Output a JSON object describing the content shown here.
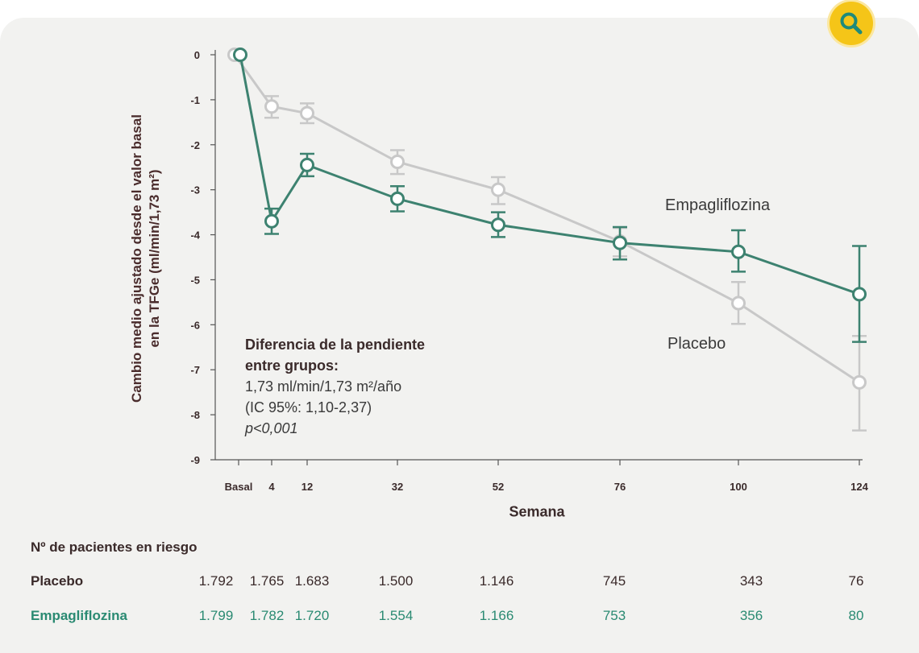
{
  "colors": {
    "empagliflozina": "#3d8270",
    "placebo": "#c8c8c8",
    "axis": "#555555",
    "card_background": "#f2f2f0",
    "zoom_button": "#f5c518",
    "risk_empagliflozina_text": "#2a8a72"
  },
  "toolbar": {
    "zoom_icon": "magnifier-icon"
  },
  "chart_data": {
    "type": "line",
    "ylabel_line1": "Cambio medio ajustado desde el valor basal",
    "ylabel_line2": "en la TFGe (ml/min/1,73 m²)",
    "xlabel": "Semana",
    "x_categories": [
      "Basal",
      "4",
      "12",
      "32",
      "52",
      "76",
      "100",
      "124"
    ],
    "ylim": [
      -9,
      0
    ],
    "yticks": [
      "0",
      "-1",
      "-2",
      "-3",
      "-4",
      "-5",
      "-6",
      "-7",
      "-8",
      "-9"
    ],
    "series": [
      {
        "name": "Placebo",
        "x": [
          "Basal",
          "4",
          "12",
          "32",
          "52",
          "76",
          "100",
          "124"
        ],
        "values": [
          0,
          -1.15,
          -1.3,
          -2.38,
          -3.0,
          -4.15,
          -5.52,
          -7.28
        ],
        "ci_low": [
          0,
          -1.4,
          -1.52,
          -2.65,
          -3.32,
          -4.48,
          -5.98,
          -8.35
        ],
        "ci_high": [
          0,
          -0.92,
          -1.08,
          -2.12,
          -2.72,
          -3.85,
          -5.05,
          -6.25
        ]
      },
      {
        "name": "Empagliflozina",
        "x": [
          "Basal",
          "4",
          "12",
          "32",
          "52",
          "76",
          "100",
          "124"
        ],
        "values": [
          0,
          -3.7,
          -2.45,
          -3.2,
          -3.78,
          -4.18,
          -4.38,
          -5.32
        ],
        "ci_low": [
          0,
          -3.98,
          -2.7,
          -3.48,
          -4.05,
          -4.55,
          -4.82,
          -6.38
        ],
        "ci_high": [
          0,
          -3.42,
          -2.2,
          -2.92,
          -3.5,
          -3.83,
          -3.9,
          -4.25
        ]
      }
    ],
    "annotation": {
      "line1": "Diferencia de la pendiente",
      "line2": "entre grupos:",
      "line3": "1,73 ml/min/1,73 m²/año",
      "line4": "(IC 95%: 1,10-2,37)",
      "line5": "p<0,001"
    },
    "series_labels": {
      "empagliflozina": "Empagliflozina",
      "placebo": "Placebo"
    }
  },
  "risk_table": {
    "title": "Nº de pacientes en riesgo",
    "rows": [
      {
        "label": "Placebo",
        "values": [
          "1.792",
          "1.765",
          "1.683",
          "1.500",
          "1.146",
          "745",
          "343",
          "76"
        ]
      },
      {
        "label": "Empagliflozina",
        "values": [
          "1.799",
          "1.782",
          "1.720",
          "1.554",
          "1.166",
          "753",
          "356",
          "80"
        ]
      }
    ]
  }
}
